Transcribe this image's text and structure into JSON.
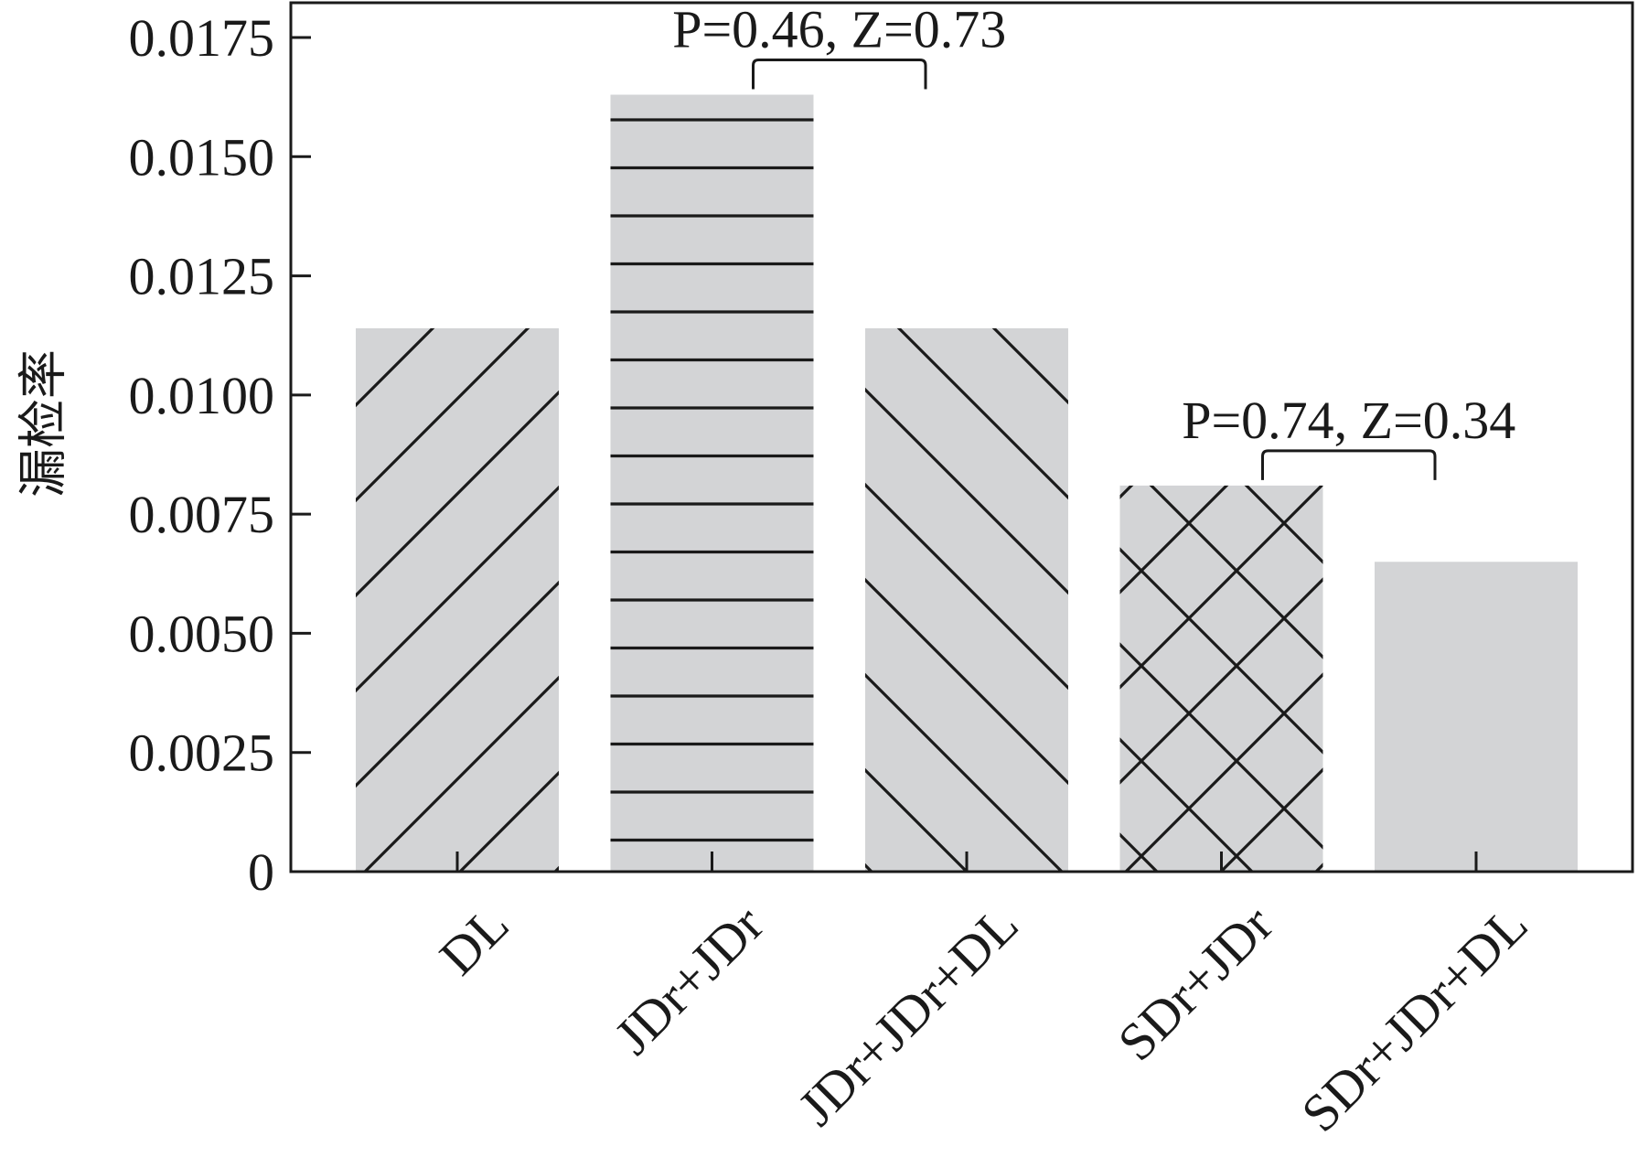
{
  "chart_data": {
    "type": "bar",
    "title": "",
    "xlabel": "",
    "ylabel": "漏检率",
    "categories": [
      "DL",
      "JDr+JDr",
      "JDr+JDr+DL",
      "SDr+JDr",
      "SDr+JDr+DL"
    ],
    "values": [
      0.0114,
      0.0163,
      0.0114,
      0.0081,
      0.0065
    ],
    "ylim": [
      0,
      0.0183
    ],
    "yticks": [
      0,
      0.0025,
      0.005,
      0.0075,
      0.01,
      0.0125,
      0.015,
      0.0175
    ],
    "ytick_labels": [
      "0",
      "0.0025",
      "0.0050",
      "0.0075",
      "0.0100",
      "0.0125",
      "0.0150",
      "0.0175"
    ],
    "grid": false,
    "legend": "none",
    "bar_fill": "#d3d4d6",
    "hatch_color": "#1a1a1a",
    "patterns": [
      "diagonal-up",
      "horizontal",
      "diagonal-down",
      "crosshatch",
      "solid"
    ],
    "annotations": [
      {
        "text": "P=0.46, Z=0.73",
        "from": 1,
        "to": 2
      },
      {
        "text": "P=0.74, Z=0.34",
        "from": 3,
        "to": 4
      }
    ]
  }
}
